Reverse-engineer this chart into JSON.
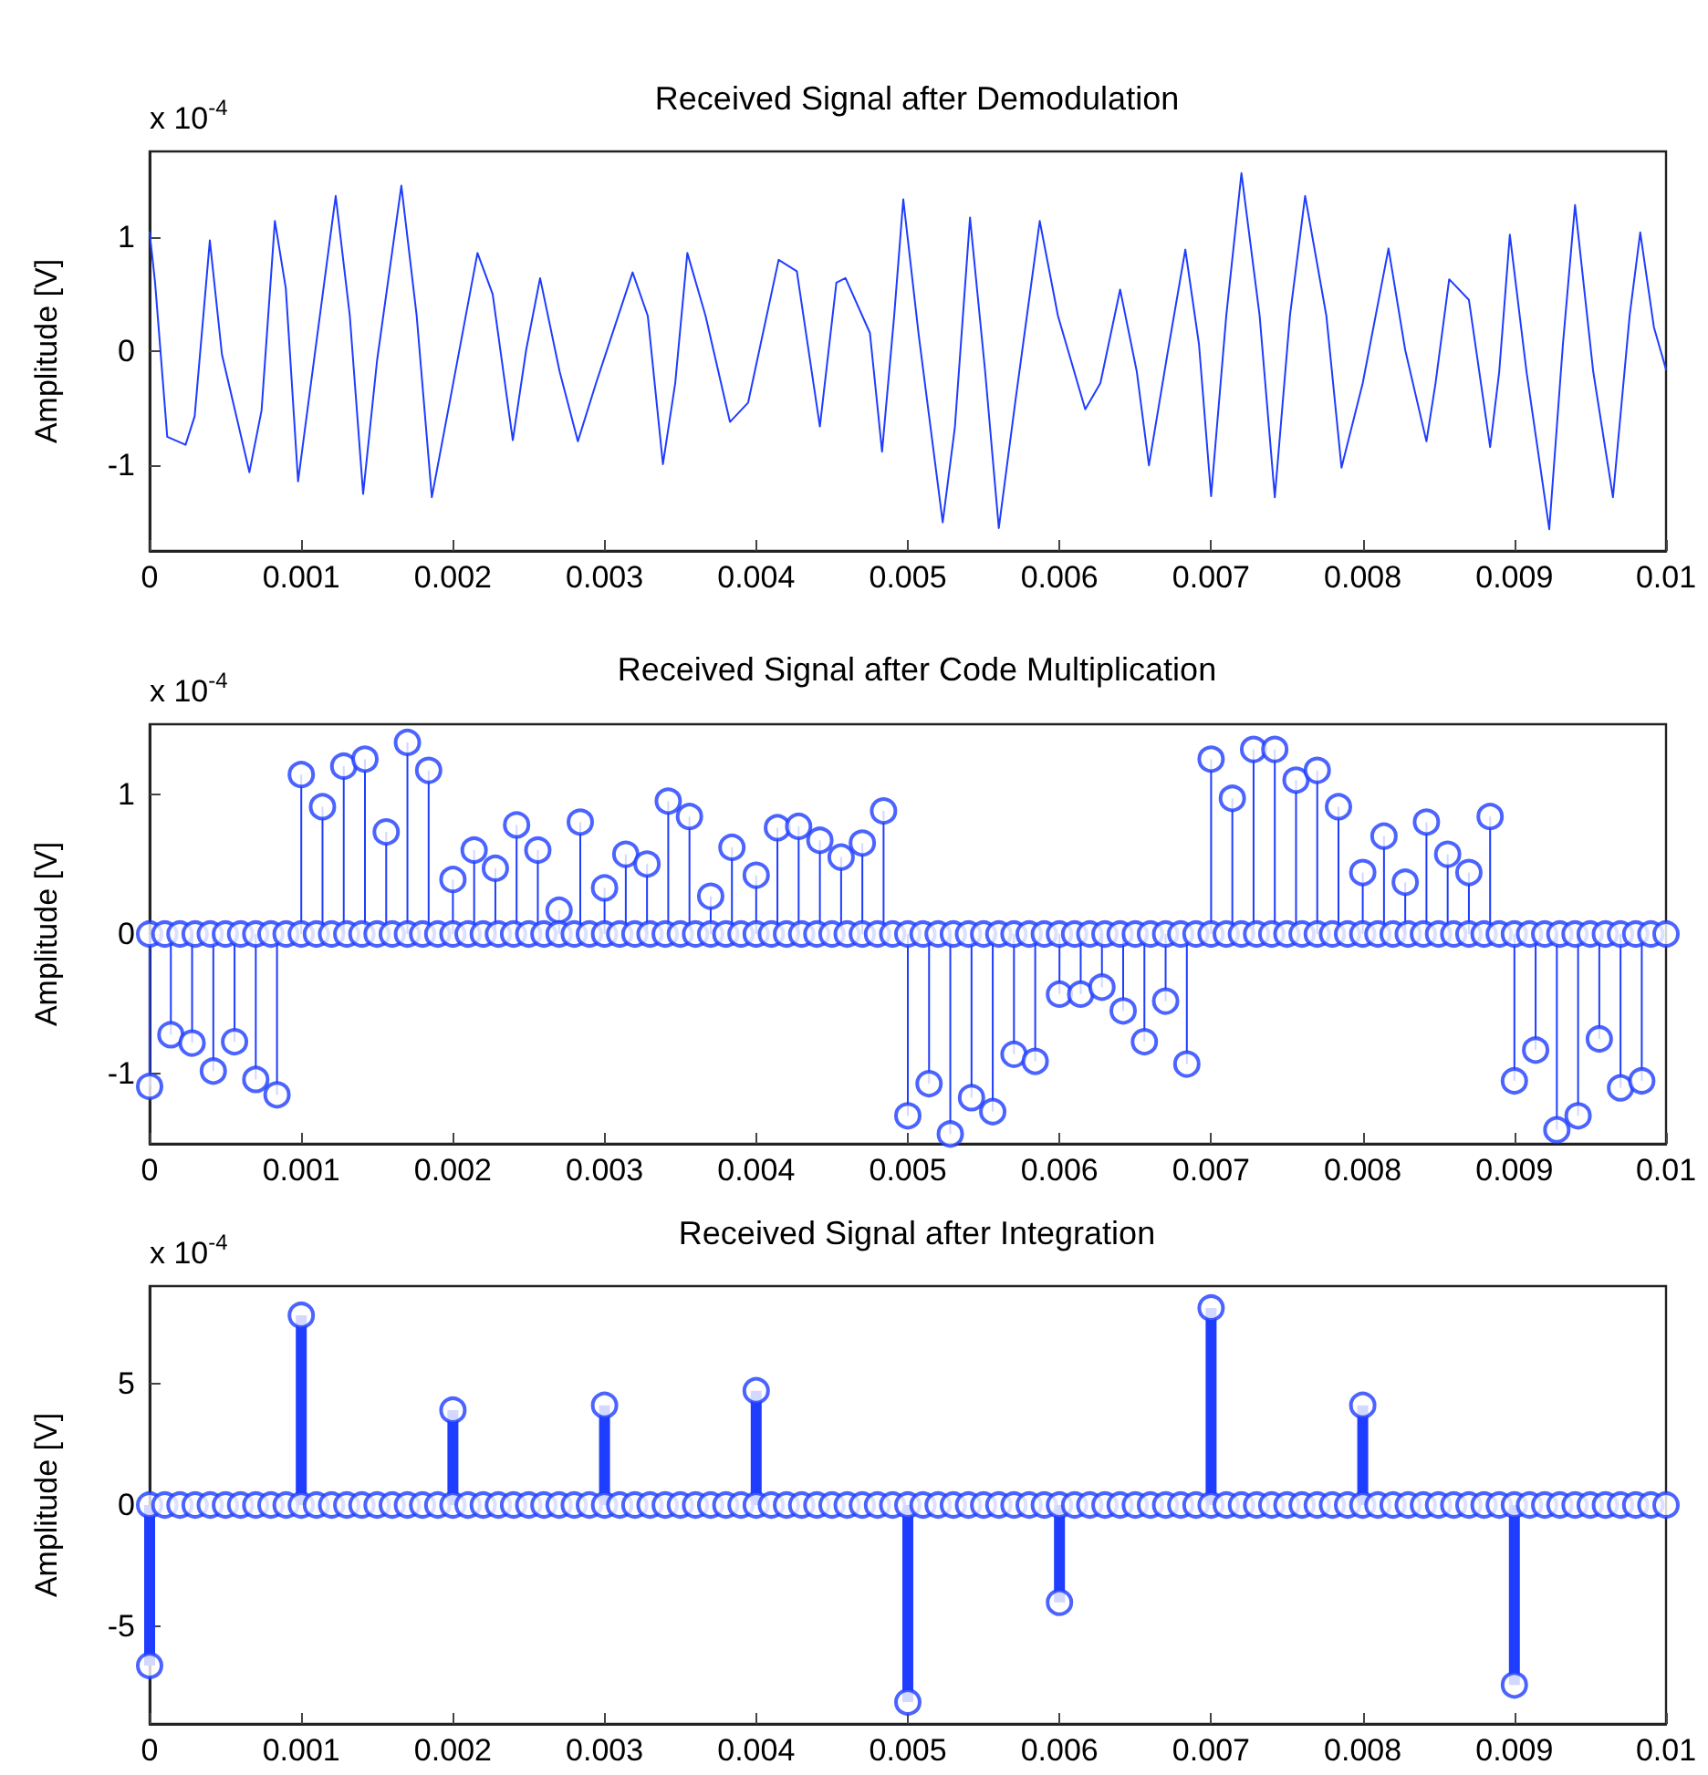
{
  "chart_data": [
    {
      "type": "line",
      "title": "Received Signal after Demodulation",
      "ylabel": "Amplitude [V]",
      "annotations": [
        "x 10$^{-4}$"
      ],
      "xlim": [
        0,
        0.01
      ],
      "xticks": [
        0,
        0.001,
        0.002,
        0.003,
        0.004,
        0.005,
        0.006,
        0.007,
        0.008,
        0.009,
        0.01
      ],
      "ylim": [
        -1.75,
        1.75
      ],
      "yticks": [
        -1,
        0,
        1
      ],
      "marker": "none",
      "line_style": "solid",
      "series": [
        {
          "color": "#1f3dff",
          "x": [
            0,
            3.6e-05,
            0.000116,
            0.000237,
            0.000297,
            0.000397,
            0.000477,
            0.000658,
            0.000738,
            0.000826,
            0.000898,
            0.000979,
            0.001059,
            0.001227,
            0.00132,
            0.001408,
            0.0015,
            0.00166,
            0.001761,
            0.001861,
            0.001981,
            0.002162,
            0.002262,
            0.002395,
            0.002483,
            0.002575,
            0.002704,
            0.002824,
            0.002944,
            0.003185,
            0.003285,
            0.003385,
            0.003466,
            0.003546,
            0.003666,
            0.003827,
            0.003947,
            0.004148,
            0.004268,
            0.00442,
            0.004529,
            0.004589,
            0.00475,
            0.00483,
            0.00491,
            0.00497,
            0.00507,
            0.00523,
            0.00531,
            0.00541,
            0.00551,
            0.0056,
            0.00571,
            0.00587,
            0.00599,
            0.00617,
            0.00627,
            0.0064,
            0.00651,
            0.00659,
            0.00671,
            0.00683,
            0.00692,
            0.007,
            0.0071,
            0.0072,
            0.00732,
            0.00742,
            0.00752,
            0.00762,
            0.00776,
            0.00786,
            0.008,
            0.00817,
            0.00828,
            0.00842,
            0.00848,
            0.00857,
            0.0087,
            0.00884,
            0.0089,
            0.00897,
            0.00908,
            0.00923,
            0.00932,
            0.0094,
            0.00952,
            0.00965,
            0.00976,
            0.00983,
            0.00992,
            0.01
          ],
          "values": [
            1.04,
            0.6,
            -0.75,
            -0.82,
            -0.57,
            0.97,
            -0.03,
            -1.06,
            -0.52,
            1.14,
            0.55,
            -1.14,
            -0.33,
            1.36,
            0.31,
            -1.25,
            -0.08,
            1.45,
            0.31,
            -1.28,
            -0.43,
            0.86,
            0.5,
            -0.78,
            0.01,
            0.64,
            -0.18,
            -0.79,
            -0.28,
            0.69,
            0.31,
            -0.99,
            -0.28,
            0.86,
            0.31,
            -0.62,
            -0.45,
            0.8,
            0.7,
            -0.66,
            0.6,
            0.64,
            0.16,
            -0.88,
            0.31,
            1.33,
            0.16,
            -1.5,
            -0.67,
            1.17,
            -0.18,
            -1.55,
            -0.43,
            1.14,
            0.31,
            -0.51,
            -0.28,
            0.54,
            -0.18,
            -1.0,
            -0.04,
            0.89,
            0.06,
            -1.27,
            0.31,
            1.56,
            0.31,
            -1.28,
            0.31,
            1.36,
            0.31,
            -1.02,
            -0.28,
            0.9,
            0.01,
            -0.79,
            -0.28,
            0.63,
            0.45,
            -0.84,
            -0.18,
            1.02,
            -0.18,
            -1.56,
            0.06,
            1.28,
            -0.18,
            -1.28,
            0.31,
            1.04,
            0.21,
            -0.16
          ]
        }
      ]
    },
    {
      "type": "lollipop",
      "title": "Received Signal after Code Multiplication",
      "ylabel": "Amplitude [V]",
      "annotations": [
        "x 10$^{-4}$"
      ],
      "xlim": [
        0,
        0.01
      ],
      "xticks": [
        0,
        0.001,
        0.002,
        0.003,
        0.004,
        0.005,
        0.006,
        0.007,
        0.008,
        0.009,
        0.01
      ],
      "ylim": [
        -1.5,
        1.5
      ],
      "yticks": [
        -1,
        0,
        1
      ],
      "marker": "circle",
      "series": [
        {
          "color": "#1f3dff",
          "x": [
            0,
            0.00014,
            0.00028,
            0.00042,
            0.00056,
            0.0007,
            0.00084,
            0.001,
            0.00114,
            0.00128,
            0.00142,
            0.00156,
            0.0017,
            0.00184,
            0.002,
            0.00214,
            0.00228,
            0.00242,
            0.00256,
            0.0027,
            0.00284,
            0.003,
            0.00314,
            0.00328,
            0.00342,
            0.00356,
            0.0037,
            0.00384,
            0.004,
            0.00414,
            0.00428,
            0.00442,
            0.00456,
            0.0047,
            0.00484,
            0.005,
            0.00514,
            0.00528,
            0.00542,
            0.00556,
            0.0057,
            0.00584,
            0.006,
            0.00614,
            0.00628,
            0.00642,
            0.00656,
            0.0067,
            0.00684,
            0.007,
            0.00714,
            0.00728,
            0.00742,
            0.00756,
            0.0077,
            0.00784,
            0.008,
            0.00814,
            0.00828,
            0.00842,
            0.00856,
            0.0087,
            0.00884,
            0.009,
            0.00914,
            0.00928,
            0.00942,
            0.00956,
            0.0097,
            0.00984
          ],
          "values": [
            -1.09,
            -0.72,
            -0.78,
            -0.98,
            -0.77,
            -1.04,
            -1.15,
            1.14,
            0.91,
            1.2,
            1.25,
            0.73,
            1.37,
            1.17,
            0.39,
            0.6,
            0.47,
            0.78,
            0.6,
            0.17,
            0.8,
            0.33,
            0.57,
            0.5,
            0.95,
            0.84,
            0.27,
            0.62,
            0.42,
            0.76,
            0.77,
            0.67,
            0.55,
            0.65,
            0.88,
            -1.3,
            -1.07,
            -1.43,
            -1.17,
            -1.27,
            -0.86,
            -0.91,
            -0.43,
            -0.43,
            -0.38,
            -0.55,
            -0.77,
            -0.48,
            -0.93,
            1.25,
            0.97,
            1.32,
            1.32,
            1.1,
            1.17,
            0.91,
            0.44,
            0.7,
            0.37,
            0.8,
            0.57,
            0.44,
            0.84,
            -1.05,
            -0.83,
            -1.4,
            -1.3,
            -0.75,
            -1.1,
            -1.05
          ]
        },
        {
          "color": "#1f3dff",
          "x": [
            0,
            0.0001,
            0.0002,
            0.0003,
            0.0004,
            0.0005,
            0.0006,
            0.0007,
            0.0008,
            0.0009,
            0.001,
            0.0011,
            0.0012,
            0.0013,
            0.0014,
            0.0015,
            0.0016,
            0.0017,
            0.0018,
            0.0019,
            0.002,
            0.0021,
            0.0022,
            0.0023,
            0.0024,
            0.0025,
            0.0026,
            0.0027,
            0.0028,
            0.0029,
            0.003,
            0.0031,
            0.0032,
            0.0033,
            0.0034,
            0.0035,
            0.0036,
            0.0037,
            0.0038,
            0.0039,
            0.004,
            0.0041,
            0.0042,
            0.0043,
            0.0044,
            0.0045,
            0.0046,
            0.0047,
            0.0048,
            0.0049,
            0.005,
            0.0051,
            0.0052,
            0.0053,
            0.0054,
            0.0055,
            0.0056,
            0.0057,
            0.0058,
            0.0059,
            0.006,
            0.0061,
            0.0062,
            0.0063,
            0.0064,
            0.0065,
            0.0066,
            0.0067,
            0.0068,
            0.0069,
            0.007,
            0.0071,
            0.0072,
            0.0073,
            0.0074,
            0.0075,
            0.0076,
            0.0077,
            0.0078,
            0.0079,
            0.008,
            0.0081,
            0.0082,
            0.0083,
            0.0084,
            0.0085,
            0.0086,
            0.0087,
            0.0088,
            0.0089,
            0.009,
            0.0091,
            0.0092,
            0.0093,
            0.0094,
            0.0095,
            0.0096,
            0.0097,
            0.0098,
            0.0099,
            0.01
          ],
          "values": [
            0,
            0,
            0,
            0,
            0,
            0,
            0,
            0,
            0,
            0,
            0,
            0,
            0,
            0,
            0,
            0,
            0,
            0,
            0,
            0,
            0,
            0,
            0,
            0,
            0,
            0,
            0,
            0,
            0,
            0,
            0,
            0,
            0,
            0,
            0,
            0,
            0,
            0,
            0,
            0,
            0,
            0,
            0,
            0,
            0,
            0,
            0,
            0,
            0,
            0,
            0,
            0,
            0,
            0,
            0,
            0,
            0,
            0,
            0,
            0,
            0,
            0,
            0,
            0,
            0,
            0,
            0,
            0,
            0,
            0,
            0,
            0,
            0,
            0,
            0,
            0,
            0,
            0,
            0,
            0,
            0,
            0,
            0,
            0,
            0,
            0,
            0,
            0,
            0,
            0,
            0,
            0,
            0,
            0,
            0,
            0,
            0,
            0,
            0,
            0,
            0
          ]
        }
      ]
    },
    {
      "type": "lollipop",
      "title": "Received Signal after Integration",
      "ylabel": "Amplitude [V]",
      "annotations": [
        "x 10$^{-4}$"
      ],
      "xlim": [
        0,
        0.01
      ],
      "xticks": [
        0,
        0.001,
        0.002,
        0.003,
        0.004,
        0.005,
        0.006,
        0.007,
        0.008,
        0.009,
        0.01
      ],
      "ylim": [
        -9,
        9
      ],
      "yticks": [
        -5,
        0,
        5
      ],
      "marker": "circle",
      "series": [
        {
          "color": "#1f3dff",
          "x": [
            0,
            0.001,
            0.002,
            0.003,
            0.004,
            0.005,
            0.006,
            0.007,
            0.008,
            0.009
          ],
          "values": [
            -6.6,
            7.8,
            3.9,
            4.1,
            4.7,
            -8.1,
            -4.0,
            8.1,
            4.1,
            -7.4
          ]
        },
        {
          "color": "#1f3dff",
          "x": [
            0,
            0.0001,
            0.0002,
            0.0003,
            0.0004,
            0.0005,
            0.0006,
            0.0007,
            0.0008,
            0.0009,
            0.001,
            0.0011,
            0.0012,
            0.0013,
            0.0014,
            0.0015,
            0.0016,
            0.0017,
            0.0018,
            0.0019,
            0.002,
            0.0021,
            0.0022,
            0.0023,
            0.0024,
            0.0025,
            0.0026,
            0.0027,
            0.0028,
            0.0029,
            0.003,
            0.0031,
            0.0032,
            0.0033,
            0.0034,
            0.0035,
            0.0036,
            0.0037,
            0.0038,
            0.0039,
            0.004,
            0.0041,
            0.0042,
            0.0043,
            0.0044,
            0.0045,
            0.0046,
            0.0047,
            0.0048,
            0.0049,
            0.005,
            0.0051,
            0.0052,
            0.0053,
            0.0054,
            0.0055,
            0.0056,
            0.0057,
            0.0058,
            0.0059,
            0.006,
            0.0061,
            0.0062,
            0.0063,
            0.0064,
            0.0065,
            0.0066,
            0.0067,
            0.0068,
            0.0069,
            0.007,
            0.0071,
            0.0072,
            0.0073,
            0.0074,
            0.0075,
            0.0076,
            0.0077,
            0.0078,
            0.0079,
            0.008,
            0.0081,
            0.0082,
            0.0083,
            0.0084,
            0.0085,
            0.0086,
            0.0087,
            0.0088,
            0.0089,
            0.009,
            0.0091,
            0.0092,
            0.0093,
            0.0094,
            0.0095,
            0.0096,
            0.0097,
            0.0098,
            0.0099,
            0.01
          ],
          "values": [
            0,
            0,
            0,
            0,
            0,
            0,
            0,
            0,
            0,
            0,
            0,
            0,
            0,
            0,
            0,
            0,
            0,
            0,
            0,
            0,
            0,
            0,
            0,
            0,
            0,
            0,
            0,
            0,
            0,
            0,
            0,
            0,
            0,
            0,
            0,
            0,
            0,
            0,
            0,
            0,
            0,
            0,
            0,
            0,
            0,
            0,
            0,
            0,
            0,
            0,
            0,
            0,
            0,
            0,
            0,
            0,
            0,
            0,
            0,
            0,
            0,
            0,
            0,
            0,
            0,
            0,
            0,
            0,
            0,
            0,
            0,
            0,
            0,
            0,
            0,
            0,
            0,
            0,
            0,
            0,
            0,
            0,
            0,
            0,
            0,
            0,
            0,
            0,
            0,
            0,
            0,
            0,
            0,
            0,
            0,
            0,
            0,
            0,
            0,
            0,
            0
          ]
        }
      ]
    }
  ]
}
